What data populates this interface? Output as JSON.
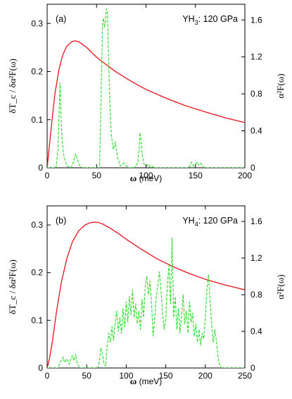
{
  "chart_data": [
    {
      "panel_label": "(a)",
      "annotation": {
        "main": "YH",
        "subscript": "3",
        "rest": ": 120 GPa"
      },
      "xlabel": {
        "symbol": "ω",
        "unit": " (meV)"
      },
      "ylabel_left": "δT_c / δα²F(ω)",
      "ylabel_right": "α²F(ω)",
      "xlim": [
        0,
        200
      ],
      "xticks": [
        "0",
        "50",
        "100",
        "150",
        "200"
      ],
      "ylim_left": [
        0,
        0.34
      ],
      "yticks_left": [
        "0",
        "0.1",
        "0.2",
        "0.3"
      ],
      "ylim_right": [
        0,
        1.77
      ],
      "yticks_right": [
        "0",
        "0.4",
        "0.8",
        "1.2",
        "1.6"
      ],
      "series": [
        {
          "type": "line",
          "axis": "left",
          "style": "solid",
          "color": "#e8121b",
          "x": [
            0,
            2,
            5,
            8,
            12,
            16,
            20,
            25,
            28,
            32,
            36,
            40,
            45,
            50,
            60,
            70,
            80,
            90,
            100,
            120,
            140,
            160,
            180,
            200
          ],
          "y": [
            0,
            0.04,
            0.1,
            0.155,
            0.205,
            0.236,
            0.253,
            0.262,
            0.264,
            0.262,
            0.256,
            0.25,
            0.24,
            0.23,
            0.214,
            0.199,
            0.186,
            0.174,
            0.163,
            0.145,
            0.129,
            0.116,
            0.104,
            0.094
          ]
        },
        {
          "type": "line",
          "axis": "right",
          "style": "dashed",
          "color": "#22dd22",
          "x": [
            0,
            9,
            11,
            12,
            13,
            14,
            15,
            17,
            20,
            24,
            26,
            28,
            29,
            31,
            33,
            36,
            45,
            53,
            54,
            56,
            57,
            58,
            59,
            60,
            61,
            62,
            63,
            64,
            65,
            67,
            69,
            71,
            73,
            74,
            76,
            78,
            80,
            83,
            88,
            92,
            93,
            94,
            95,
            96,
            98,
            101,
            103,
            104,
            106,
            108,
            115,
            135,
            143,
            145,
            146,
            148,
            150,
            152,
            153,
            155,
            157,
            159,
            200
          ],
          "y": [
            0,
            0,
            0.2,
            0.55,
            0.92,
            0.6,
            0.3,
            0.12,
            0.02,
            0,
            0.04,
            0.12,
            0.15,
            0.08,
            0.02,
            0,
            0,
            0,
            0.45,
            1.55,
            1.62,
            1.52,
            1.6,
            1.72,
            1.68,
            1.25,
            0.85,
            0.55,
            0.35,
            0.2,
            0.28,
            0.12,
            0.05,
            0.02,
            0.04,
            0.05,
            0.02,
            0,
            0,
            0.06,
            0.22,
            0.38,
            0.3,
            0.15,
            0.04,
            0.02,
            0.04,
            0.01,
            0.02,
            0,
            0,
            0,
            0,
            0.03,
            0.06,
            0.02,
            0.04,
            0.06,
            0.03,
            0.05,
            0.03,
            0,
            0
          ]
        }
      ]
    },
    {
      "panel_label": "(b)",
      "annotation": {
        "main": "YH",
        "subscript": "4",
        "rest": ": 120 GPa"
      },
      "xlabel": {
        "symbol": "ω",
        "unit": " (meV)"
      },
      "ylabel_left": "δT_c / δα²F(ω)",
      "ylabel_right": "α²F(ω)",
      "xlim": [
        0,
        250
      ],
      "xticks": [
        "0",
        "50",
        "100",
        "150",
        "200",
        "250"
      ],
      "ylim_left": [
        0,
        0.34
      ],
      "yticks_left": [
        "0",
        "0.1",
        "0.2",
        "0.3"
      ],
      "ylim_right": [
        0,
        1.77
      ],
      "yticks_right": [
        "0",
        "0.4",
        "0.8",
        "1.2",
        "1.6"
      ],
      "series": [
        {
          "type": "line",
          "axis": "left",
          "style": "solid",
          "color": "#e8121b",
          "x": [
            0,
            3,
            7,
            12,
            18,
            25,
            32,
            40,
            48,
            55,
            60,
            65,
            70,
            80,
            90,
            100,
            120,
            140,
            160,
            180,
            200,
            225,
            250
          ],
          "y": [
            0,
            0.02,
            0.06,
            0.12,
            0.18,
            0.23,
            0.265,
            0.288,
            0.3,
            0.305,
            0.306,
            0.305,
            0.302,
            0.293,
            0.282,
            0.27,
            0.248,
            0.228,
            0.212,
            0.198,
            0.186,
            0.174,
            0.164
          ]
        },
        {
          "type": "line",
          "axis": "right",
          "style": "dashed",
          "color": "#22dd22",
          "x": [
            0,
            14,
            16,
            18,
            20,
            22,
            25,
            28,
            30,
            32,
            34,
            36,
            38,
            40,
            42,
            64,
            65,
            66,
            68,
            70,
            72,
            74,
            76,
            78,
            80,
            82,
            84,
            86,
            88,
            90,
            92,
            94,
            96,
            98,
            100,
            102,
            104,
            106,
            108,
            110,
            112,
            114,
            116,
            118,
            120,
            122,
            124,
            126,
            128,
            130,
            132,
            134,
            136,
            138,
            140,
            142,
            144,
            146,
            148,
            150,
            152,
            154,
            156,
            158,
            160,
            162,
            164,
            166,
            168,
            170,
            172,
            174,
            176,
            178,
            180,
            182,
            184,
            186,
            188,
            190,
            192,
            194,
            196,
            198,
            200,
            202,
            204,
            206,
            208,
            210,
            212,
            214,
            216,
            218,
            220,
            250
          ],
          "y": [
            0,
            0,
            0.06,
            0.08,
            0.12,
            0.06,
            0.1,
            0.04,
            0.1,
            0.14,
            0.08,
            0.15,
            0.05,
            0.02,
            0,
            0,
            0.02,
            0.08,
            0.22,
            0.15,
            0.05,
            0.02,
            0.25,
            0.38,
            0.28,
            0.45,
            0.3,
            0.5,
            0.62,
            0.4,
            0.55,
            0.38,
            0.65,
            0.45,
            0.72,
            0.5,
            0.78,
            0.58,
            0.85,
            0.55,
            0.7,
            0.48,
            0.62,
            0.42,
            0.75,
            0.55,
            0.9,
            1.0,
            0.8,
            0.95,
            0.7,
            0.35,
            0.55,
            0.78,
            0.92,
            1.05,
            0.85,
            0.6,
            0.42,
            0.55,
            0.9,
            1.12,
            0.7,
            1.42,
            0.55,
            0.78,
            0.42,
            0.65,
            0.38,
            0.58,
            0.8,
            0.48,
            0.62,
            0.38,
            0.72,
            0.5,
            0.6,
            0.35,
            0.48,
            0.28,
            0.42,
            0.25,
            0.38,
            0.32,
            0.55,
            0.85,
            1.02,
            0.75,
            0.48,
            0.28,
            0.42,
            0.3,
            0.12,
            0.04,
            0,
            0
          ]
        }
      ]
    }
  ]
}
